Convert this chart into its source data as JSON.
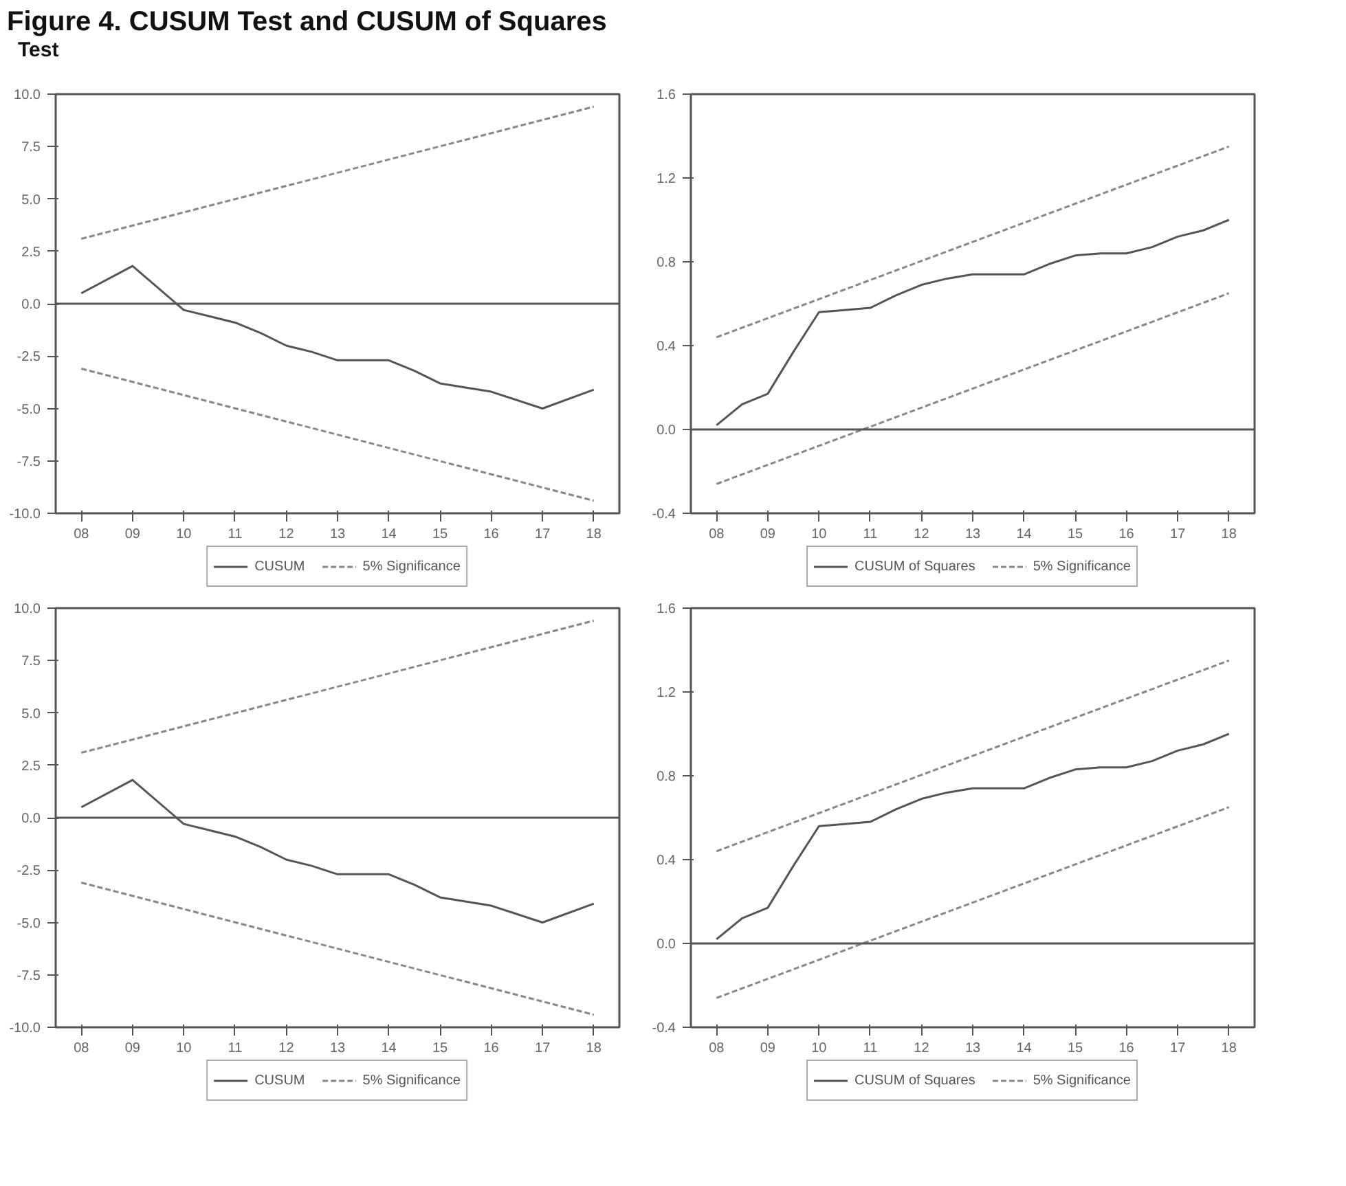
{
  "chart_data": [
    {
      "type": "line",
      "title": "Figure 4. CUSUM Test and CUSUM of Squares",
      "annotations": [
        "Test"
      ],
      "xlim": [
        2007.5,
        2018.5
      ],
      "xticks": [
        {
          "value": 2008,
          "label": "08"
        },
        {
          "value": 2009,
          "label": "09"
        },
        {
          "value": 2010,
          "label": "10"
        },
        {
          "value": 2011,
          "label": "11"
        },
        {
          "value": 2012,
          "label": "12"
        },
        {
          "value": 2013,
          "label": "13"
        },
        {
          "value": 2014,
          "label": "14"
        },
        {
          "value": 2015,
          "label": "15"
        },
        {
          "value": 2016,
          "label": "16"
        },
        {
          "value": 2017,
          "label": "17"
        },
        {
          "value": 2018,
          "label": "18"
        }
      ],
      "ylim": [
        -10,
        10
      ],
      "yticks": [
        {
          "value": 10,
          "label": "10.0"
        },
        {
          "value": 7.5,
          "label": "7.5"
        },
        {
          "value": 5,
          "label": "5.0"
        },
        {
          "value": 2.5,
          "label": "2.5"
        },
        {
          "value": 0,
          "label": "0.0"
        },
        {
          "value": -2.5,
          "label": "-2.5"
        },
        {
          "value": -5,
          "label": "-5.0"
        },
        {
          "value": -7.5,
          "label": "-7.5"
        },
        {
          "value": -10,
          "label": "-10.0"
        }
      ],
      "grid": false,
      "legend": "bottom",
      "ref_lines": [
        {
          "axis": "y",
          "value": 0,
          "color": "#555555"
        }
      ],
      "series": [
        {
          "name": "CUSUM",
          "color": "#555555",
          "line_style": "solid",
          "x": [
            2008,
            2009,
            2010,
            2010.5,
            2011,
            2011.5,
            2012,
            2012.5,
            2013,
            2014,
            2014.5,
            2015,
            2015.5,
            2016,
            2016.5,
            2017,
            2018
          ],
          "values": [
            0.5,
            1.8,
            -0.3,
            -0.6,
            -0.9,
            -1.4,
            -2.0,
            -2.3,
            -2.7,
            -2.7,
            -3.2,
            -3.8,
            -4.0,
            -4.2,
            -4.6,
            -5.0,
            -4.1
          ]
        },
        {
          "name": "5% Significance",
          "color": "#888888",
          "line_style": "dashed",
          "x": [
            2008,
            2018
          ],
          "values": [
            3.1,
            9.4
          ]
        },
        {
          "color": "#888888",
          "line_style": "dashed",
          "x": [
            2008,
            2018
          ],
          "values": [
            -3.1,
            -9.4
          ]
        }
      ]
    },
    {
      "type": "line",
      "xlim": [
        2007.5,
        2018.5
      ],
      "xticks": [
        {
          "value": 2008,
          "label": "08"
        },
        {
          "value": 2009,
          "label": "09"
        },
        {
          "value": 2010,
          "label": "10"
        },
        {
          "value": 2011,
          "label": "11"
        },
        {
          "value": 2012,
          "label": "12"
        },
        {
          "value": 2013,
          "label": "13"
        },
        {
          "value": 2014,
          "label": "14"
        },
        {
          "value": 2015,
          "label": "15"
        },
        {
          "value": 2016,
          "label": "16"
        },
        {
          "value": 2017,
          "label": "17"
        },
        {
          "value": 2018,
          "label": "18"
        }
      ],
      "ylim": [
        -0.4,
        1.6
      ],
      "yticks": [
        {
          "value": 1.6,
          "label": "1.6"
        },
        {
          "value": 1.2,
          "label": "1.2"
        },
        {
          "value": 0.8,
          "label": "0.8"
        },
        {
          "value": 0.4,
          "label": "0.4"
        },
        {
          "value": 0,
          "label": "0.0"
        },
        {
          "value": -0.4,
          "label": "-0.4"
        }
      ],
      "grid": false,
      "legend": "bottom",
      "ref_lines": [
        {
          "axis": "y",
          "value": 0,
          "color": "#555555"
        }
      ],
      "series": [
        {
          "name": "CUSUM of Squares",
          "color": "#555555",
          "line_style": "solid",
          "x": [
            2008,
            2008.5,
            2009,
            2009.5,
            2010,
            2010.5,
            2011,
            2011.5,
            2012,
            2012.5,
            2013,
            2014,
            2014.5,
            2015,
            2015.5,
            2016,
            2016.5,
            2017,
            2017.5,
            2018
          ],
          "values": [
            0.02,
            0.12,
            0.17,
            0.37,
            0.56,
            0.57,
            0.58,
            0.64,
            0.69,
            0.72,
            0.74,
            0.74,
            0.79,
            0.83,
            0.84,
            0.84,
            0.87,
            0.92,
            0.95,
            1.0
          ]
        },
        {
          "name": "5% Significance",
          "color": "#888888",
          "line_style": "dashed",
          "x": [
            2008,
            2018
          ],
          "values": [
            0.44,
            1.35
          ]
        },
        {
          "color": "#888888",
          "line_style": "dashed",
          "x": [
            2008,
            2018
          ],
          "values": [
            -0.26,
            0.65
          ]
        }
      ]
    },
    {
      "type": "line",
      "xlim": [
        2007.5,
        2018.5
      ],
      "xticks": [
        {
          "value": 2008,
          "label": "08"
        },
        {
          "value": 2009,
          "label": "09"
        },
        {
          "value": 2010,
          "label": "10"
        },
        {
          "value": 2011,
          "label": "11"
        },
        {
          "value": 2012,
          "label": "12"
        },
        {
          "value": 2013,
          "label": "13"
        },
        {
          "value": 2014,
          "label": "14"
        },
        {
          "value": 2015,
          "label": "15"
        },
        {
          "value": 2016,
          "label": "16"
        },
        {
          "value": 2017,
          "label": "17"
        },
        {
          "value": 2018,
          "label": "18"
        }
      ],
      "ylim": [
        -10,
        10
      ],
      "yticks": [
        {
          "value": 10,
          "label": "10.0"
        },
        {
          "value": 7.5,
          "label": "7.5"
        },
        {
          "value": 5,
          "label": "5.0"
        },
        {
          "value": 2.5,
          "label": "2.5"
        },
        {
          "value": 0,
          "label": "0.0"
        },
        {
          "value": -2.5,
          "label": "-2.5"
        },
        {
          "value": -5,
          "label": "-5.0"
        },
        {
          "value": -7.5,
          "label": "-7.5"
        },
        {
          "value": -10,
          "label": "-10.0"
        }
      ],
      "grid": false,
      "legend": "bottom",
      "ref_lines": [
        {
          "axis": "y",
          "value": 0,
          "color": "#555555"
        }
      ],
      "series": [
        {
          "name": "CUSUM",
          "color": "#555555",
          "line_style": "solid",
          "x": [
            2008,
            2009,
            2010,
            2010.5,
            2011,
            2011.5,
            2012,
            2012.5,
            2013,
            2014,
            2014.5,
            2015,
            2015.5,
            2016,
            2016.5,
            2017,
            2018
          ],
          "values": [
            0.5,
            1.8,
            -0.3,
            -0.6,
            -0.9,
            -1.4,
            -2.0,
            -2.3,
            -2.7,
            -2.7,
            -3.2,
            -3.8,
            -4.0,
            -4.2,
            -4.6,
            -5.0,
            -4.1
          ]
        },
        {
          "name": "5% Significance",
          "color": "#888888",
          "line_style": "dashed",
          "x": [
            2008,
            2018
          ],
          "values": [
            3.1,
            9.4
          ]
        },
        {
          "color": "#888888",
          "line_style": "dashed",
          "x": [
            2008,
            2018
          ],
          "values": [
            -3.1,
            -9.4
          ]
        }
      ]
    },
    {
      "type": "line",
      "xlim": [
        2007.5,
        2018.5
      ],
      "xticks": [
        {
          "value": 2008,
          "label": "08"
        },
        {
          "value": 2009,
          "label": "09"
        },
        {
          "value": 2010,
          "label": "10"
        },
        {
          "value": 2011,
          "label": "11"
        },
        {
          "value": 2012,
          "label": "12"
        },
        {
          "value": 2013,
          "label": "13"
        },
        {
          "value": 2014,
          "label": "14"
        },
        {
          "value": 2015,
          "label": "15"
        },
        {
          "value": 2016,
          "label": "16"
        },
        {
          "value": 2017,
          "label": "17"
        },
        {
          "value": 2018,
          "label": "18"
        }
      ],
      "ylim": [
        -0.4,
        1.6
      ],
      "yticks": [
        {
          "value": 1.6,
          "label": "1.6"
        },
        {
          "value": 1.2,
          "label": "1.2"
        },
        {
          "value": 0.8,
          "label": "0.8"
        },
        {
          "value": 0.4,
          "label": "0.4"
        },
        {
          "value": 0,
          "label": "0.0"
        },
        {
          "value": -0.4,
          "label": "-0.4"
        }
      ],
      "grid": false,
      "legend": "bottom",
      "ref_lines": [
        {
          "axis": "y",
          "value": 0,
          "color": "#555555"
        }
      ],
      "series": [
        {
          "name": "CUSUM of Squares",
          "color": "#555555",
          "line_style": "solid",
          "x": [
            2008,
            2008.5,
            2009,
            2009.5,
            2010,
            2010.5,
            2011,
            2011.5,
            2012,
            2012.5,
            2013,
            2014,
            2014.5,
            2015,
            2015.5,
            2016,
            2016.5,
            2017,
            2017.5,
            2018
          ],
          "values": [
            0.02,
            0.12,
            0.17,
            0.37,
            0.56,
            0.57,
            0.58,
            0.64,
            0.69,
            0.72,
            0.74,
            0.74,
            0.79,
            0.83,
            0.84,
            0.84,
            0.87,
            0.92,
            0.95,
            1.0
          ]
        },
        {
          "name": "5% Significance",
          "color": "#888888",
          "line_style": "dashed",
          "x": [
            2008,
            2018
          ],
          "values": [
            0.44,
            1.35
          ]
        },
        {
          "color": "#888888",
          "line_style": "dashed",
          "x": [
            2008,
            2018
          ],
          "values": [
            -0.26,
            0.65
          ]
        }
      ]
    }
  ]
}
